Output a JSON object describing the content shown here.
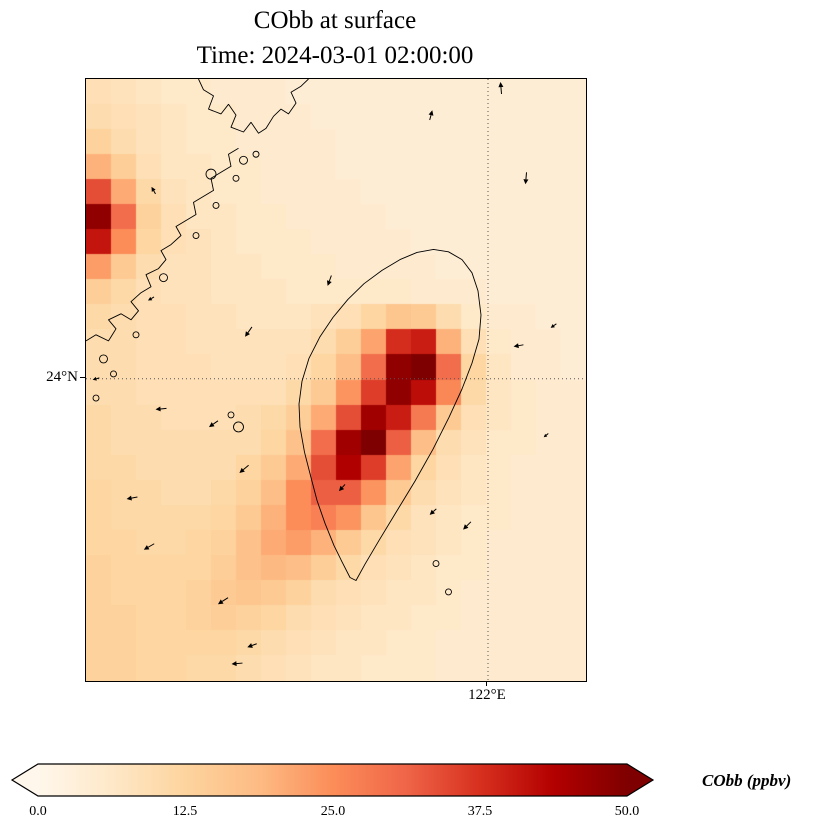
{
  "title": {
    "line1": "CObb at surface",
    "line2": "Time: 2024-03-01 02:00:00"
  },
  "axes": {
    "lat_label": "24°N",
    "lon_label": "122°E"
  },
  "colorbar": {
    "label": "CObb (ppbv)",
    "ticks": [
      "0.0",
      "12.5",
      "25.0",
      "37.5",
      "50.0"
    ],
    "min": 0,
    "max": 50
  },
  "chart_data": {
    "type": "heatmap",
    "title": "CObb at surface",
    "subtitle": "Time: 2024-03-01 02:00:00",
    "units": "ppbv",
    "colormap": "OrRd",
    "colormap_colors": [
      "#fff7ec",
      "#fee8c8",
      "#fdd49e",
      "#fdbb84",
      "#fc8d59",
      "#ef6548",
      "#d7301f",
      "#b30000",
      "#7f0000"
    ],
    "vmin": 0,
    "vmax": 50,
    "gridlines": {
      "lat_label": "24°N",
      "lat_frac": 0.498,
      "lon_label": "122°E",
      "lon_frac": 0.804
    },
    "grid": {
      "cols": 20,
      "rows": 24,
      "values": [
        [
          9,
          8,
          7,
          6,
          6,
          5,
          5,
          5,
          4,
          4,
          4,
          4,
          4,
          4,
          4,
          4,
          4,
          4,
          4,
          4
        ],
        [
          10,
          9,
          8,
          7,
          6,
          6,
          5,
          5,
          5,
          4,
          4,
          4,
          4,
          4,
          4,
          4,
          4,
          4,
          4,
          4
        ],
        [
          13,
          10,
          8,
          7,
          6,
          6,
          5,
          5,
          5,
          5,
          4,
          4,
          4,
          4,
          4,
          4,
          4,
          4,
          4,
          4
        ],
        [
          20,
          14,
          9,
          7,
          7,
          6,
          6,
          5,
          5,
          5,
          4,
          4,
          4,
          4,
          4,
          4,
          4,
          4,
          4,
          4
        ],
        [
          34,
          21,
          11,
          8,
          7,
          6,
          6,
          5,
          5,
          5,
          5,
          4,
          4,
          4,
          4,
          4,
          4,
          4,
          4,
          4
        ],
        [
          48,
          30,
          13,
          9,
          7,
          7,
          6,
          6,
          5,
          5,
          5,
          5,
          4,
          4,
          4,
          4,
          4,
          4,
          4,
          4
        ],
        [
          41,
          25,
          12,
          9,
          8,
          7,
          6,
          6,
          6,
          5,
          5,
          5,
          5,
          4,
          4,
          4,
          4,
          4,
          4,
          4
        ],
        [
          23,
          15,
          10,
          8,
          8,
          7,
          7,
          6,
          6,
          6,
          5,
          5,
          5,
          5,
          4,
          4,
          4,
          4,
          4,
          4
        ],
        [
          14,
          11,
          9,
          8,
          8,
          7,
          7,
          7,
          6,
          6,
          6,
          6,
          6,
          5,
          5,
          5,
          4,
          4,
          4,
          4
        ],
        [
          11,
          10,
          9,
          9,
          8,
          8,
          7,
          7,
          7,
          8,
          9,
          12,
          16,
          15,
          10,
          6,
          5,
          5,
          4,
          4
        ],
        [
          10,
          10,
          9,
          9,
          8,
          8,
          8,
          8,
          8,
          10,
          14,
          22,
          38,
          40,
          20,
          9,
          6,
          5,
          5,
          4
        ],
        [
          10,
          10,
          9,
          9,
          9,
          8,
          8,
          8,
          9,
          12,
          18,
          30,
          48,
          50,
          30,
          12,
          7,
          5,
          5,
          4
        ],
        [
          10,
          10,
          9,
          9,
          9,
          9,
          9,
          9,
          11,
          15,
          24,
          36,
          48,
          42,
          26,
          11,
          7,
          6,
          5,
          5
        ],
        [
          11,
          10,
          10,
          9,
          9,
          9,
          10,
          11,
          14,
          21,
          34,
          46,
          40,
          28,
          15,
          9,
          7,
          6,
          5,
          5
        ],
        [
          11,
          10,
          10,
          10,
          10,
          10,
          10,
          12,
          17,
          30,
          46,
          50,
          32,
          18,
          10,
          8,
          6,
          6,
          5,
          5
        ],
        [
          11,
          11,
          10,
          10,
          10,
          10,
          12,
          15,
          21,
          34,
          44,
          36,
          22,
          12,
          9,
          7,
          6,
          5,
          5,
          5
        ],
        [
          12,
          11,
          11,
          10,
          10,
          11,
          13,
          18,
          25,
          32,
          32,
          24,
          15,
          10,
          8,
          7,
          6,
          5,
          5,
          5
        ],
        [
          12,
          11,
          11,
          11,
          11,
          12,
          15,
          20,
          25,
          27,
          24,
          16,
          11,
          8,
          7,
          6,
          6,
          5,
          5,
          5
        ],
        [
          12,
          12,
          11,
          11,
          12,
          13,
          17,
          21,
          23,
          20,
          15,
          11,
          9,
          8,
          7,
          6,
          5,
          5,
          5,
          5
        ],
        [
          13,
          12,
          12,
          12,
          12,
          14,
          17,
          19,
          18,
          14,
          11,
          9,
          8,
          7,
          6,
          6,
          5,
          5,
          5,
          5
        ],
        [
          13,
          12,
          12,
          12,
          13,
          15,
          16,
          15,
          13,
          10,
          9,
          8,
          7,
          7,
          6,
          5,
          5,
          5,
          5,
          5
        ],
        [
          13,
          13,
          12,
          12,
          13,
          14,
          13,
          12,
          10,
          9,
          8,
          7,
          7,
          6,
          6,
          5,
          5,
          5,
          5,
          5
        ],
        [
          13,
          13,
          12,
          12,
          12,
          12,
          11,
          10,
          9,
          8,
          7,
          7,
          6,
          6,
          5,
          5,
          5,
          5,
          5,
          5
        ],
        [
          13,
          13,
          12,
          12,
          11,
          11,
          10,
          9,
          8,
          7,
          7,
          6,
          6,
          6,
          5,
          5,
          5,
          5,
          5,
          5
        ]
      ]
    },
    "wind_arrows": [
      {
        "x": 0.83,
        "y": 0.015,
        "a": 95,
        "l": 12
      },
      {
        "x": 0.69,
        "y": 0.06,
        "a": 75,
        "l": 10
      },
      {
        "x": 0.88,
        "y": 0.165,
        "a": 265,
        "l": 12
      },
      {
        "x": 0.135,
        "y": 0.185,
        "a": 120,
        "l": 8
      },
      {
        "x": 0.487,
        "y": 0.335,
        "a": 250,
        "l": 11
      },
      {
        "x": 0.325,
        "y": 0.42,
        "a": 235,
        "l": 12
      },
      {
        "x": 0.13,
        "y": 0.365,
        "a": 210,
        "l": 7
      },
      {
        "x": 0.935,
        "y": 0.41,
        "a": 215,
        "l": 7
      },
      {
        "x": 0.865,
        "y": 0.443,
        "a": 190,
        "l": 10
      },
      {
        "x": 0.02,
        "y": 0.498,
        "a": 195,
        "l": 7
      },
      {
        "x": 0.15,
        "y": 0.548,
        "a": 185,
        "l": 11
      },
      {
        "x": 0.255,
        "y": 0.573,
        "a": 215,
        "l": 11
      },
      {
        "x": 0.316,
        "y": 0.648,
        "a": 220,
        "l": 12
      },
      {
        "x": 0.512,
        "y": 0.679,
        "a": 228,
        "l": 9
      },
      {
        "x": 0.694,
        "y": 0.719,
        "a": 222,
        "l": 9
      },
      {
        "x": 0.762,
        "y": 0.742,
        "a": 225,
        "l": 11
      },
      {
        "x": 0.092,
        "y": 0.696,
        "a": 190,
        "l": 11
      },
      {
        "x": 0.126,
        "y": 0.777,
        "a": 210,
        "l": 12
      },
      {
        "x": 0.274,
        "y": 0.867,
        "a": 213,
        "l": 12
      },
      {
        "x": 0.332,
        "y": 0.941,
        "a": 200,
        "l": 10
      },
      {
        "x": 0.302,
        "y": 0.971,
        "a": 185,
        "l": 11
      },
      {
        "x": 0.92,
        "y": 0.592,
        "a": 220,
        "l": 6
      }
    ],
    "coastlines": {
      "taiwan": [
        [
          0.695,
          0.283
        ],
        [
          0.725,
          0.287
        ],
        [
          0.752,
          0.3
        ],
        [
          0.772,
          0.322
        ],
        [
          0.784,
          0.352
        ],
        [
          0.79,
          0.392
        ],
        [
          0.786,
          0.432
        ],
        [
          0.772,
          0.472
        ],
        [
          0.752,
          0.515
        ],
        [
          0.726,
          0.562
        ],
        [
          0.694,
          0.615
        ],
        [
          0.658,
          0.668
        ],
        [
          0.62,
          0.72
        ],
        [
          0.585,
          0.768
        ],
        [
          0.558,
          0.806
        ],
        [
          0.54,
          0.833
        ],
        [
          0.528,
          0.828
        ],
        [
          0.512,
          0.802
        ],
        [
          0.496,
          0.775
        ],
        [
          0.478,
          0.738
        ],
        [
          0.462,
          0.7
        ],
        [
          0.45,
          0.662
        ],
        [
          0.437,
          0.62
        ],
        [
          0.428,
          0.578
        ],
        [
          0.426,
          0.54
        ],
        [
          0.432,
          0.502
        ],
        [
          0.446,
          0.464
        ],
        [
          0.468,
          0.428
        ],
        [
          0.494,
          0.396
        ],
        [
          0.524,
          0.366
        ],
        [
          0.556,
          0.34
        ],
        [
          0.592,
          0.318
        ],
        [
          0.628,
          0.3
        ],
        [
          0.662,
          0.288
        ],
        [
          0.695,
          0.283
        ]
      ],
      "mainland": [
        [
          [
            0.225,
            0.0
          ],
          [
            0.235,
            0.018
          ],
          [
            0.255,
            0.028
          ],
          [
            0.245,
            0.05
          ],
          [
            0.27,
            0.058
          ],
          [
            0.285,
            0.042
          ],
          [
            0.3,
            0.06
          ],
          [
            0.29,
            0.08
          ],
          [
            0.315,
            0.088
          ],
          [
            0.33,
            0.072
          ],
          [
            0.345,
            0.09
          ],
          [
            0.36,
            0.082
          ],
          [
            0.375,
            0.062
          ],
          [
            0.39,
            0.05
          ],
          [
            0.405,
            0.058
          ],
          [
            0.42,
            0.04
          ],
          [
            0.41,
            0.022
          ],
          [
            0.43,
            0.012
          ],
          [
            0.445,
            0.0
          ]
        ],
        [
          [
            0.0,
            0.435
          ],
          [
            0.02,
            0.425
          ],
          [
            0.045,
            0.435
          ],
          [
            0.06,
            0.415
          ],
          [
            0.045,
            0.4
          ],
          [
            0.07,
            0.39
          ],
          [
            0.09,
            0.4
          ],
          [
            0.105,
            0.385
          ],
          [
            0.09,
            0.37
          ],
          [
            0.11,
            0.355
          ],
          [
            0.13,
            0.345
          ],
          [
            0.12,
            0.325
          ],
          [
            0.145,
            0.315
          ],
          [
            0.16,
            0.3
          ],
          [
            0.15,
            0.285
          ],
          [
            0.17,
            0.275
          ],
          [
            0.19,
            0.26
          ],
          [
            0.18,
            0.245
          ],
          [
            0.2,
            0.235
          ],
          [
            0.22,
            0.225
          ],
          [
            0.215,
            0.205
          ],
          [
            0.235,
            0.195
          ],
          [
            0.255,
            0.185
          ],
          [
            0.25,
            0.165
          ],
          [
            0.27,
            0.155
          ],
          [
            0.29,
            0.145
          ],
          [
            0.285,
            0.125
          ],
          [
            0.305,
            0.115
          ]
        ]
      ],
      "islands": [
        [
          0.315,
          0.135,
          4
        ],
        [
          0.34,
          0.125,
          3
        ],
        [
          0.3,
          0.165,
          3
        ],
        [
          0.25,
          0.158,
          5
        ],
        [
          0.26,
          0.21,
          3
        ],
        [
          0.22,
          0.26,
          3
        ],
        [
          0.155,
          0.33,
          4
        ],
        [
          0.1,
          0.425,
          3
        ],
        [
          0.035,
          0.465,
          4
        ],
        [
          0.055,
          0.49,
          3
        ],
        [
          0.02,
          0.53,
          3
        ],
        [
          0.305,
          0.578,
          5
        ],
        [
          0.29,
          0.558,
          3
        ],
        [
          0.7,
          0.805,
          3
        ],
        [
          0.725,
          0.852,
          3
        ]
      ]
    }
  }
}
